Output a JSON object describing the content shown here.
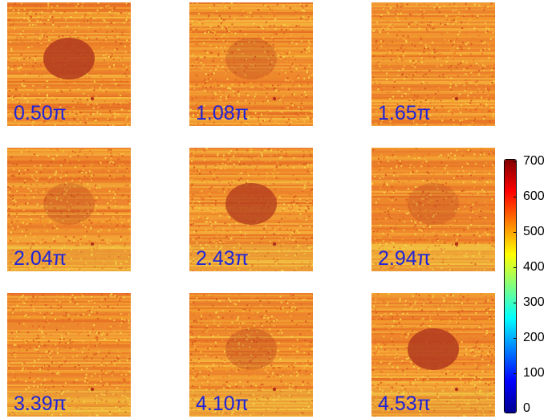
{
  "panels": [
    {
      "label": "0.50π",
      "contrast": 1.0
    },
    {
      "label": "1.08π",
      "contrast": 0.35
    },
    {
      "label": "1.65π",
      "contrast": 0.0
    },
    {
      "label": "2.04π",
      "contrast": 0.35
    },
    {
      "label": "2.43π",
      "contrast": 0.9
    },
    {
      "label": "2.94π",
      "contrast": 0.3
    },
    {
      "label": "3.39π",
      "contrast": 0.0
    },
    {
      "label": "4.10π",
      "contrast": 0.4
    },
    {
      "label": "4.53π",
      "contrast": 1.0
    }
  ],
  "colorbar": {
    "min": 0,
    "max": 700,
    "ticks": [
      "700",
      "600",
      "500",
      "400",
      "300",
      "200",
      "100",
      "0"
    ],
    "colormap": "jet"
  },
  "colors": {
    "label_text": "#1f24d9",
    "background_map": "#f08c28",
    "feature_dark": "#b23a1e"
  }
}
